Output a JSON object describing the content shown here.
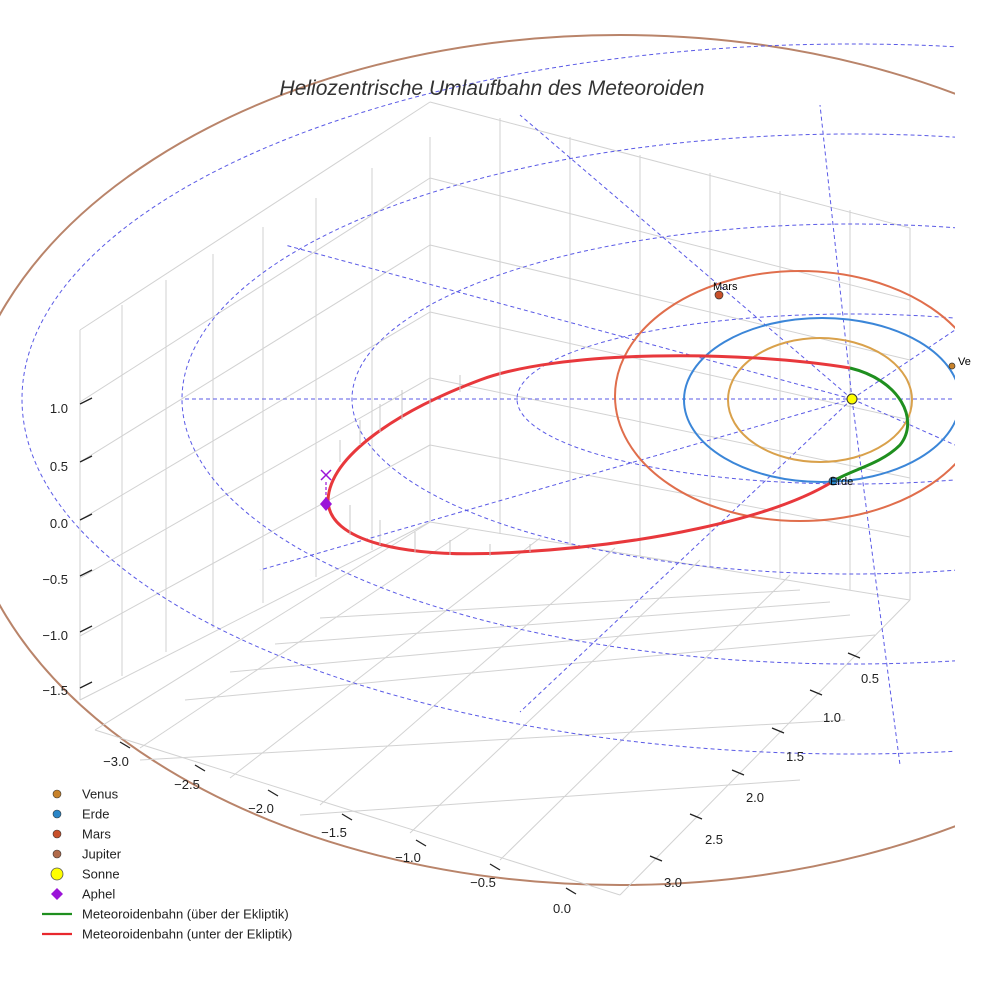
{
  "chart_data": {
    "type": "3d-orbit",
    "title": "Heliozentrische Umlaufbahn des Meteoroiden",
    "x_ticks": [
      "−3.0",
      "−2.5",
      "−2.0",
      "−1.5",
      "−1.0",
      "−0.5",
      "0.0"
    ],
    "y_ticks": [
      "0.5",
      "1.0",
      "1.5",
      "2.0",
      "2.5",
      "3.0"
    ],
    "z_ticks": [
      "1.0",
      "0.5",
      "0.0",
      "−0.5",
      "−1.0",
      "−1.5"
    ],
    "planet_labels": {
      "mars": "Mars",
      "erde": "Erde",
      "venus": "Ve"
    },
    "legend": [
      {
        "key": "venus",
        "label": "Venus",
        "marker": "circle",
        "color": "#c8822a"
      },
      {
        "key": "erde",
        "label": "Erde",
        "marker": "circle",
        "color": "#2a86c8"
      },
      {
        "key": "mars",
        "label": "Mars",
        "marker": "circle",
        "color": "#c8502a"
      },
      {
        "key": "jupiter",
        "label": "Jupiter",
        "marker": "circle",
        "color": "#b06a4a"
      },
      {
        "key": "sonne",
        "label": "Sonne",
        "marker": "circle-large",
        "color": "#ffff00"
      },
      {
        "key": "aphel",
        "label": "Aphel",
        "marker": "diamond",
        "color": "#9b14d8"
      },
      {
        "key": "above",
        "label": "Meteoroidenbahn (über der Ekliptik)",
        "marker": "line",
        "color": "#1f8f1f"
      },
      {
        "key": "below",
        "label": "Meteoroidenbahn (unter der Ekliptik)",
        "marker": "line",
        "color": "#e8282d"
      }
    ],
    "orbit_radii_au": {
      "venus": 0.72,
      "erde": 1.0,
      "mars": 1.52,
      "jupiter": 5.2
    },
    "ecliptic_rings_au": [
      1,
      2,
      3,
      4
    ],
    "meteoroid": {
      "aphelion_au": 3.2,
      "perihelion_au": 0.55
    },
    "colors": {
      "venus_orbit": "#d9a14b",
      "erde_orbit": "#3b86d8",
      "mars_orbit": "#e06e4c",
      "jupiter_orbit": "#b9846a",
      "grid": "#d2d2d2",
      "ecliptic": "#5a5ae6",
      "above": "#1f8f1f",
      "below": "#e8383c"
    }
  }
}
